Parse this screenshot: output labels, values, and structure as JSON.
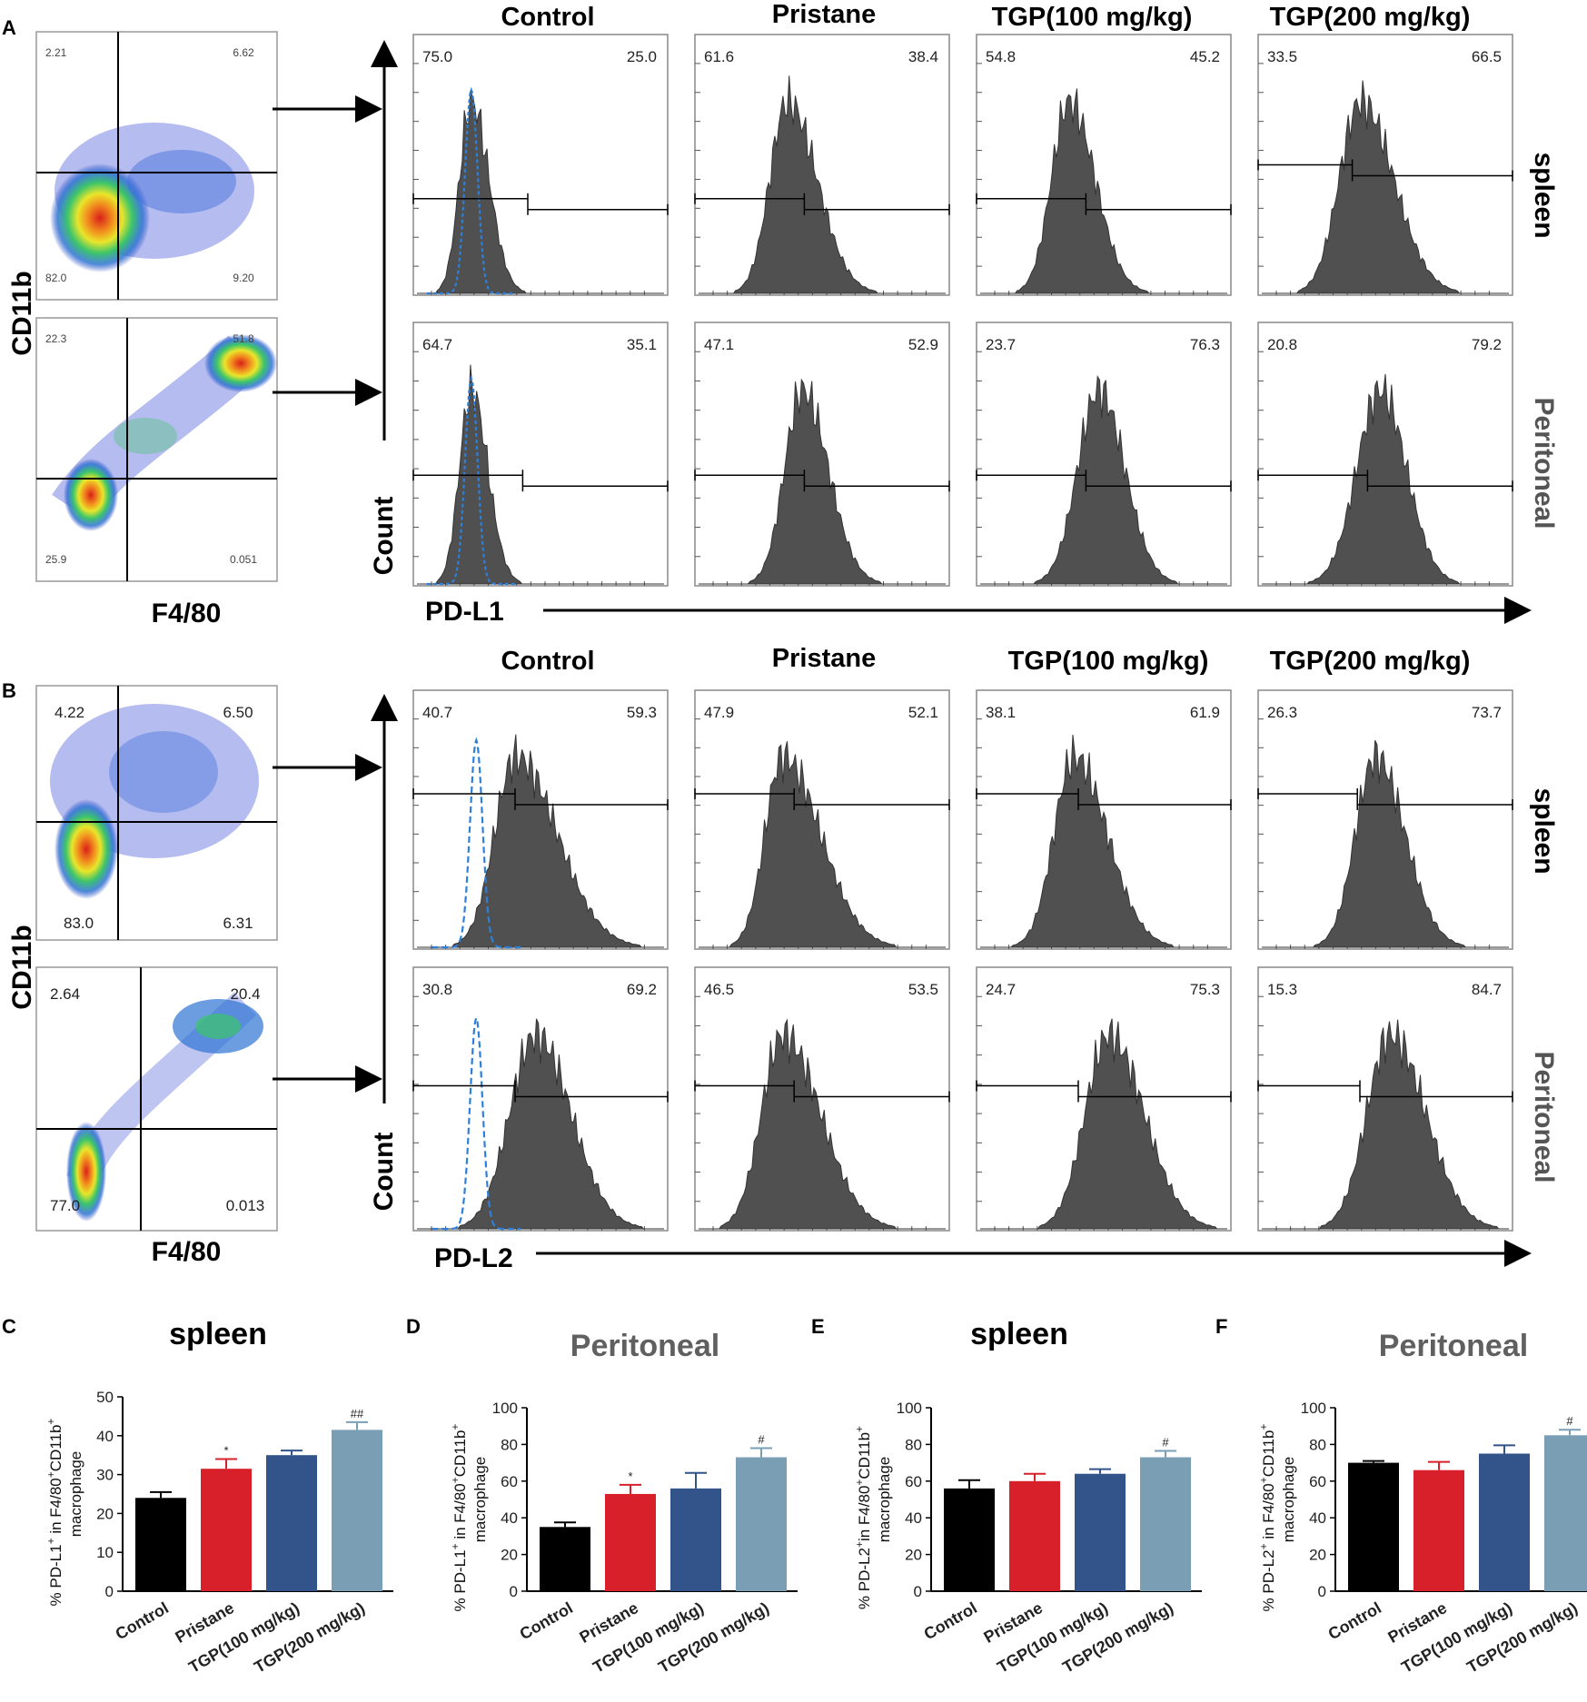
{
  "colors": {
    "hist_fill": "#505050",
    "isotype_line": "#2e7fd9",
    "bar_colors": [
      "#000000",
      "#d7202a",
      "#33548a",
      "#7a9fb5"
    ],
    "axis": "#000000",
    "panel_border": "#888888",
    "title_gray": "#606060"
  },
  "figure": {
    "panel_labels": [
      "A",
      "B",
      "C",
      "D",
      "E",
      "F"
    ],
    "group_headers": [
      "Control",
      "Pristane",
      "TGP(100 mg/kg)",
      "TGP(200 mg/kg)"
    ],
    "row_labels": [
      "spleen",
      "Peritoneal"
    ],
    "scatter_ylabel": "CD11b",
    "scatter_xlabel": "F4/80",
    "hist_ylabel": "Count",
    "marker_A": "PD-L1",
    "marker_B": "PD-L2"
  },
  "scatter_quadrants": {
    "A_spleen": [
      "2.21",
      "6.62",
      "82.0",
      "9.20"
    ],
    "A_peritoneal": [
      "22.3",
      "51.8",
      "25.9",
      "0.051"
    ],
    "B_spleen": [
      "4.22",
      "6.50",
      "83.0",
      "6.31"
    ],
    "B_peritoneal": [
      "2.64",
      "20.4",
      "77.0",
      "0.013"
    ]
  },
  "histogram_gates": {
    "A_spleen": [
      [
        "75.0",
        "25.0"
      ],
      [
        "61.6",
        "38.4"
      ],
      [
        "54.8",
        "45.2"
      ],
      [
        "33.5",
        "66.5"
      ]
    ],
    "A_peritoneal": [
      [
        "64.7",
        "35.1"
      ],
      [
        "47.1",
        "52.9"
      ],
      [
        "23.7",
        "76.3"
      ],
      [
        "20.8",
        "79.2"
      ]
    ],
    "B_spleen": [
      [
        "40.7",
        "59.3"
      ],
      [
        "47.9",
        "52.1"
      ],
      [
        "38.1",
        "61.9"
      ],
      [
        "26.3",
        "73.7"
      ]
    ],
    "B_peritoneal": [
      [
        "30.8",
        "69.2"
      ],
      [
        "46.5",
        "53.5"
      ],
      [
        "24.7",
        "75.3"
      ],
      [
        "15.3",
        "84.7"
      ]
    ]
  },
  "chart_data": [
    {
      "panel": "C",
      "type": "bar",
      "title": "spleen",
      "ylabel_main": "% PD-L1",
      "ylabel_mid": " in F4/80",
      "ylabel_end": "CD11b",
      "ylabel_sup1": "+",
      "ylabel_sup2": "+",
      "ylabel_sup3": "+",
      "ylabel_line2": "macrophage",
      "categories": [
        "Control",
        "Pristane",
        "TGP(100 mg/kg)",
        "TGP(200 mg/kg)"
      ],
      "values": [
        24,
        31.5,
        35,
        41.5
      ],
      "errors": [
        1.5,
        2.5,
        1.2,
        2
      ],
      "annotations": [
        "",
        "*",
        "",
        "##"
      ],
      "ylim": [
        0,
        50
      ],
      "yticks": [
        0,
        10,
        20,
        30,
        40,
        50
      ]
    },
    {
      "panel": "D",
      "type": "bar",
      "title": "Peritoneal",
      "ylabel_main": "% PD-L1",
      "ylabel_mid": " in F4/80",
      "ylabel_end": "CD11b",
      "ylabel_sup1": "+",
      "ylabel_sup2": "+",
      "ylabel_sup3": "+",
      "ylabel_line2": "macrophage",
      "categories": [
        "Control",
        "Pristane",
        "TGP(100 mg/kg)",
        "TGP(200 mg/kg)"
      ],
      "values": [
        35,
        53,
        56,
        73
      ],
      "errors": [
        2.5,
        5,
        8.5,
        5
      ],
      "annotations": [
        "",
        "*",
        "",
        "#"
      ],
      "ylim": [
        0,
        100
      ],
      "yticks": [
        0,
        20,
        40,
        60,
        80,
        100
      ]
    },
    {
      "panel": "E",
      "type": "bar",
      "title": "spleen",
      "ylabel_main": "% PD-L2",
      "ylabel_mid": "in F4/80",
      "ylabel_end": "CD11b",
      "ylabel_sup1": "+",
      "ylabel_sup2": "+",
      "ylabel_sup3": "+",
      "ylabel_line2": "macrophage",
      "categories": [
        "Control",
        "Pristane",
        "TGP(100 mg/kg)",
        "TGP(200 mg/kg)"
      ],
      "values": [
        56,
        60,
        64,
        73
      ],
      "errors": [
        4.5,
        4,
        2.5,
        3.5
      ],
      "annotations": [
        "",
        "",
        "",
        "#"
      ],
      "ylim": [
        0,
        100
      ],
      "yticks": [
        0,
        20,
        40,
        60,
        80,
        100
      ]
    },
    {
      "panel": "F",
      "type": "bar",
      "title": "Peritoneal",
      "ylabel_main": "% PD-L2",
      "ylabel_mid": " in F4/80",
      "ylabel_end": "CD11b",
      "ylabel_sup1": "+",
      "ylabel_sup2": "+",
      "ylabel_sup3": "+",
      "ylabel_line2": "macrophage",
      "categories": [
        "Control",
        "Pristane",
        "TGP(100 mg/kg)",
        "TGP(200 mg/kg)"
      ],
      "values": [
        70,
        66,
        75,
        85
      ],
      "errors": [
        1,
        4.5,
        4.5,
        3
      ],
      "annotations": [
        "",
        "",
        "",
        "#"
      ],
      "ylim": [
        0,
        100
      ],
      "yticks": [
        0,
        20,
        40,
        60,
        80,
        100
      ]
    }
  ]
}
